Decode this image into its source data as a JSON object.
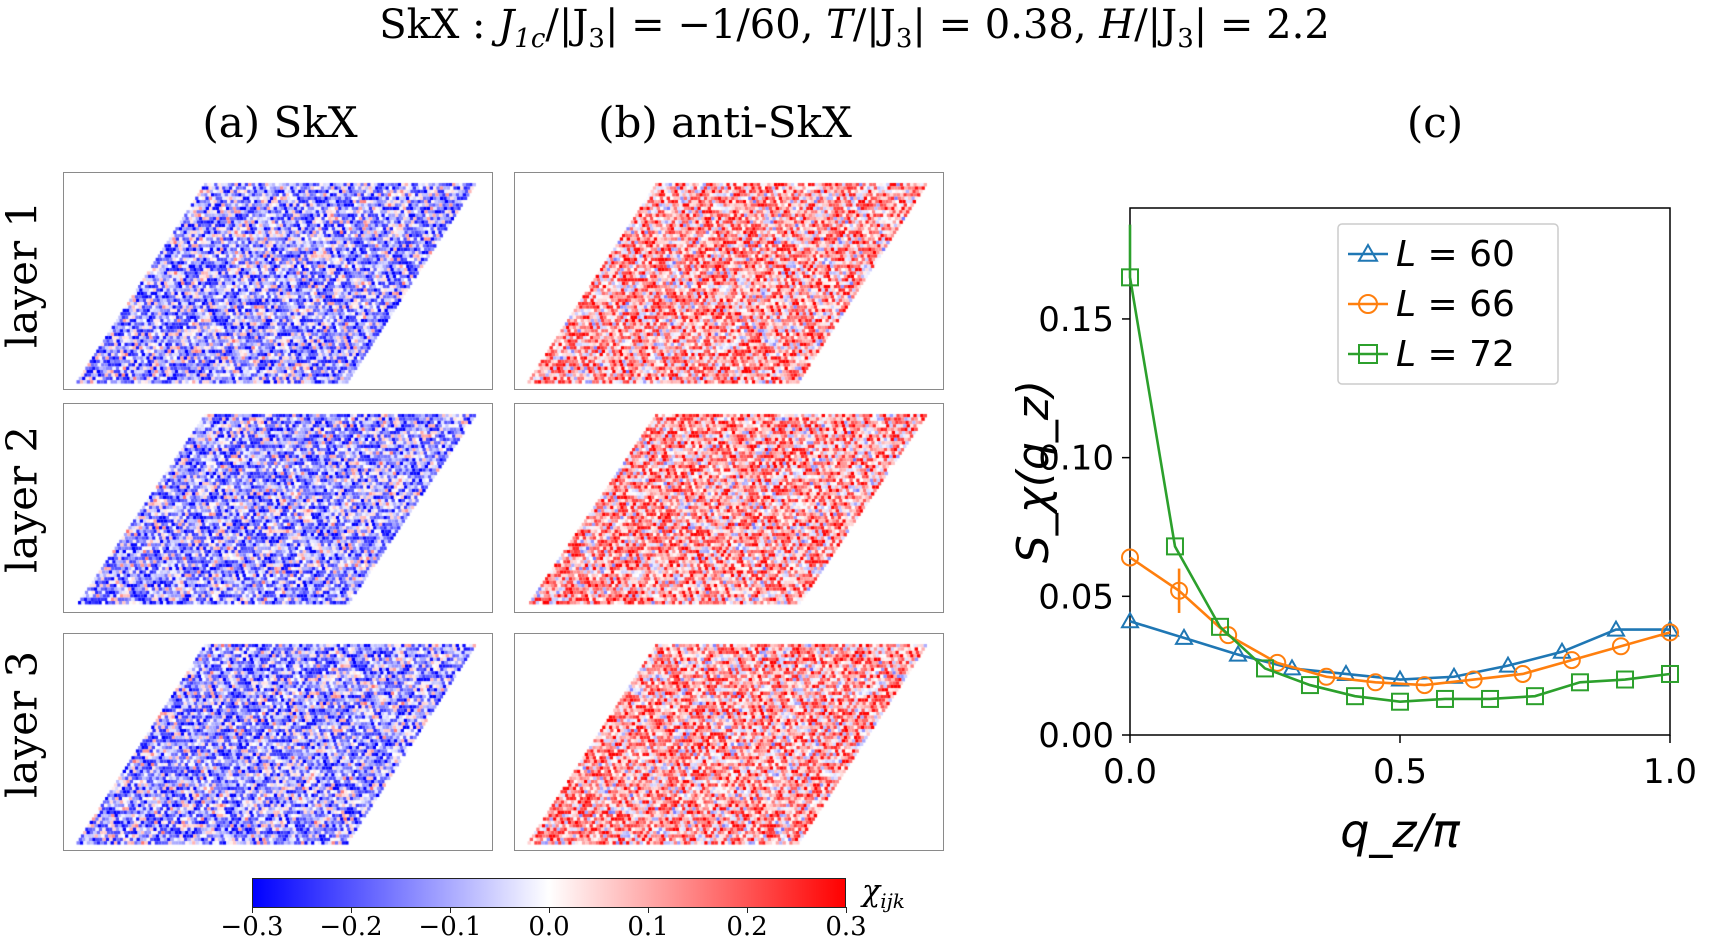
{
  "title": "SkX : J_1c/|J_3| = −1/60,  T/|J_3| = 0.38,  H/|J_3| = 2.2",
  "title_parts": {
    "prefix": "SkX : ",
    "t1": "J",
    "t1_sub": "1c",
    "t1_rest": "/|J",
    "t1_sub2": "3",
    "t1_val": "| = −1/60,  ",
    "t2": "T",
    "t2_rest": "/|J",
    "t2_sub": "3",
    "t2_val": "| = 0.38,  ",
    "t3": "H",
    "t3_rest": "/|J",
    "t3_sub": "3",
    "t3_val": "| = 2.2"
  },
  "panels": {
    "a_label": "(a) SkX",
    "b_label": "(b) anti-SkX",
    "c_label": "(c)",
    "rows": [
      "layer 1",
      "layer 2",
      "layer 3"
    ]
  },
  "colorbar": {
    "label": "χ",
    "label_sub": "ijk",
    "ticks": [
      "−0.3",
      "−0.2",
      "−0.1",
      "0.0",
      "0.1",
      "0.2",
      "0.3"
    ],
    "min": -0.3,
    "max": 0.3,
    "colors": {
      "low": "#0000ff",
      "mid": "#ffffff",
      "high": "#ff0000"
    }
  },
  "chart_data": {
    "type": "line",
    "xlabel": "q_z/π",
    "ylabel": "S_χ(q_z)",
    "xlim": [
      0.0,
      1.0
    ],
    "ylim": [
      0.0,
      0.19
    ],
    "xticks": [
      "0.0",
      "0.5",
      "1.0"
    ],
    "yticks": [
      "0.00",
      "0.05",
      "0.10",
      "0.15"
    ],
    "xtick_values": [
      0.0,
      0.5,
      1.0
    ],
    "ytick_values": [
      0.0,
      0.05,
      0.1,
      0.15
    ],
    "legend_position": "top-right",
    "series": [
      {
        "name": "L = 60",
        "legend_var": "L",
        "legend_val": " = 60",
        "color": "#1f77b4",
        "marker": "triangle",
        "x": [
          0.0,
          0.1,
          0.2,
          0.3,
          0.4,
          0.5,
          0.6,
          0.7,
          0.8,
          0.9,
          1.0
        ],
        "y": [
          0.041,
          0.035,
          0.029,
          0.024,
          0.022,
          0.02,
          0.021,
          0.025,
          0.03,
          0.038,
          0.038
        ]
      },
      {
        "name": "L = 66",
        "legend_var": "L",
        "legend_val": " = 66",
        "color": "#ff7f0e",
        "marker": "circle",
        "x": [
          0.0,
          0.0909,
          0.1818,
          0.2727,
          0.3636,
          0.4545,
          0.5455,
          0.6364,
          0.7273,
          0.8182,
          0.9091,
          1.0
        ],
        "y": [
          0.064,
          0.052,
          0.036,
          0.026,
          0.021,
          0.019,
          0.018,
          0.02,
          0.022,
          0.027,
          0.032,
          0.037
        ],
        "errorbars": [
          {
            "x": 0.0909,
            "y": 0.052,
            "err": 0.008
          }
        ]
      },
      {
        "name": "L = 72",
        "legend_var": "L",
        "legend_val": " = 72",
        "color": "#2ca02c",
        "marker": "square",
        "x": [
          0.0,
          0.0833,
          0.1667,
          0.25,
          0.3333,
          0.4167,
          0.5,
          0.5833,
          0.6667,
          0.75,
          0.8333,
          0.9167,
          1.0
        ],
        "y": [
          0.165,
          0.068,
          0.039,
          0.024,
          0.018,
          0.014,
          0.012,
          0.013,
          0.013,
          0.014,
          0.019,
          0.02,
          0.022
        ],
        "line_start": {
          "x": 0.0,
          "y": 0.184
        }
      }
    ]
  }
}
